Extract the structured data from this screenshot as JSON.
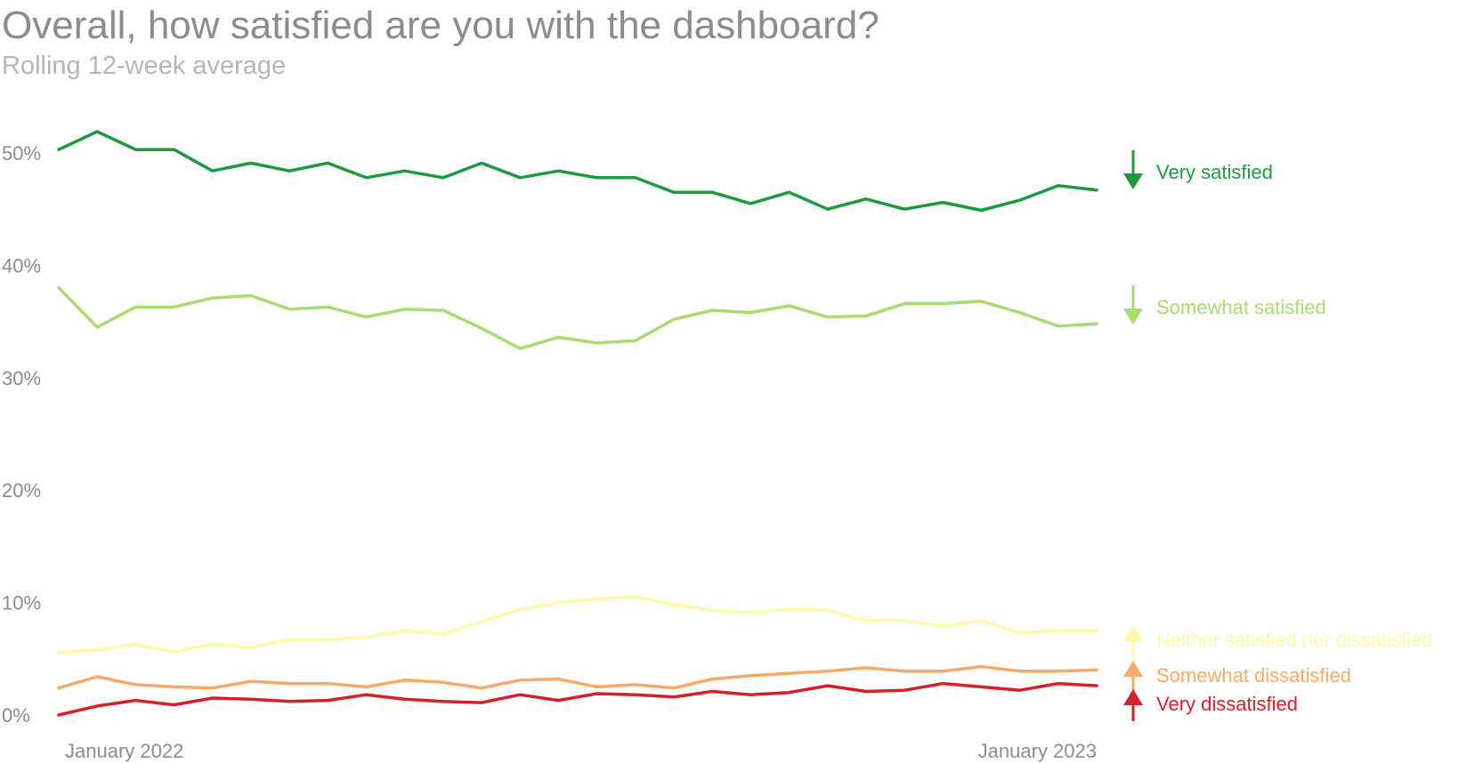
{
  "chart_data": {
    "type": "line",
    "title": "Overall, how satisfied are you with the dashboard?",
    "subtitle": "Rolling 12-week average",
    "ylim": [
      0,
      50
    ],
    "y_ticks": [
      0,
      10,
      20,
      30,
      40,
      50
    ],
    "y_tick_labels": [
      "0%",
      "10%",
      "20%",
      "30%",
      "40%",
      "50%"
    ],
    "x_tick_labels": [
      "January 2022",
      "January 2023"
    ],
    "grid": false,
    "legend": "right-end labels",
    "series": [
      {
        "name": "Very satisfied",
        "color": "#1e9a3e",
        "trend": "down",
        "values": [
          50.3,
          51.9,
          50.3,
          50.3,
          48.4,
          49.1,
          48.4,
          49.1,
          47.8,
          48.4,
          47.8,
          49.1,
          47.8,
          48.4,
          47.8,
          47.8,
          46.5,
          46.5,
          45.5,
          46.5,
          45.0,
          45.9,
          45.0,
          45.6,
          44.9,
          45.8,
          47.1,
          46.7
        ]
      },
      {
        "name": "Somewhat satisfied",
        "color": "#a8dc6e",
        "trend": "down",
        "values": [
          38.0,
          34.5,
          36.3,
          36.3,
          37.1,
          37.3,
          36.1,
          36.3,
          35.4,
          36.1,
          36.0,
          34.4,
          32.6,
          33.6,
          33.1,
          33.3,
          35.2,
          36.0,
          35.8,
          36.4,
          35.4,
          35.5,
          36.6,
          36.6,
          36.8,
          35.8,
          34.6,
          34.8
        ]
      },
      {
        "name": "Neither satisfied nor dissatisfied",
        "color": "#fcfaa8",
        "trend": "up",
        "values": [
          5.5,
          5.8,
          6.3,
          5.6,
          6.3,
          6.0,
          6.7,
          6.7,
          6.9,
          7.5,
          7.2,
          8.3,
          9.4,
          10.0,
          10.3,
          10.5,
          9.8,
          9.3,
          9.1,
          9.4,
          9.3,
          8.4,
          8.4,
          7.9,
          8.4,
          7.3,
          7.5,
          7.5
        ]
      },
      {
        "name": "Somewhat dissatisfied",
        "color": "#f5ab67",
        "trend": "up",
        "values": [
          2.4,
          3.4,
          2.7,
          2.5,
          2.4,
          3.0,
          2.8,
          2.8,
          2.5,
          3.1,
          2.9,
          2.4,
          3.1,
          3.2,
          2.5,
          2.7,
          2.4,
          3.2,
          3.5,
          3.7,
          3.9,
          4.2,
          3.9,
          3.9,
          4.3,
          3.9,
          3.9,
          4.0
        ]
      },
      {
        "name": "Very dissatisfied",
        "color": "#d42027",
        "trend": "up",
        "values": [
          0.0,
          0.8,
          1.3,
          0.9,
          1.5,
          1.4,
          1.2,
          1.3,
          1.8,
          1.4,
          1.2,
          1.1,
          1.8,
          1.3,
          1.9,
          1.8,
          1.6,
          2.1,
          1.8,
          2.0,
          2.6,
          2.1,
          2.2,
          2.8,
          2.5,
          2.2,
          2.8,
          2.6
        ]
      }
    ]
  }
}
